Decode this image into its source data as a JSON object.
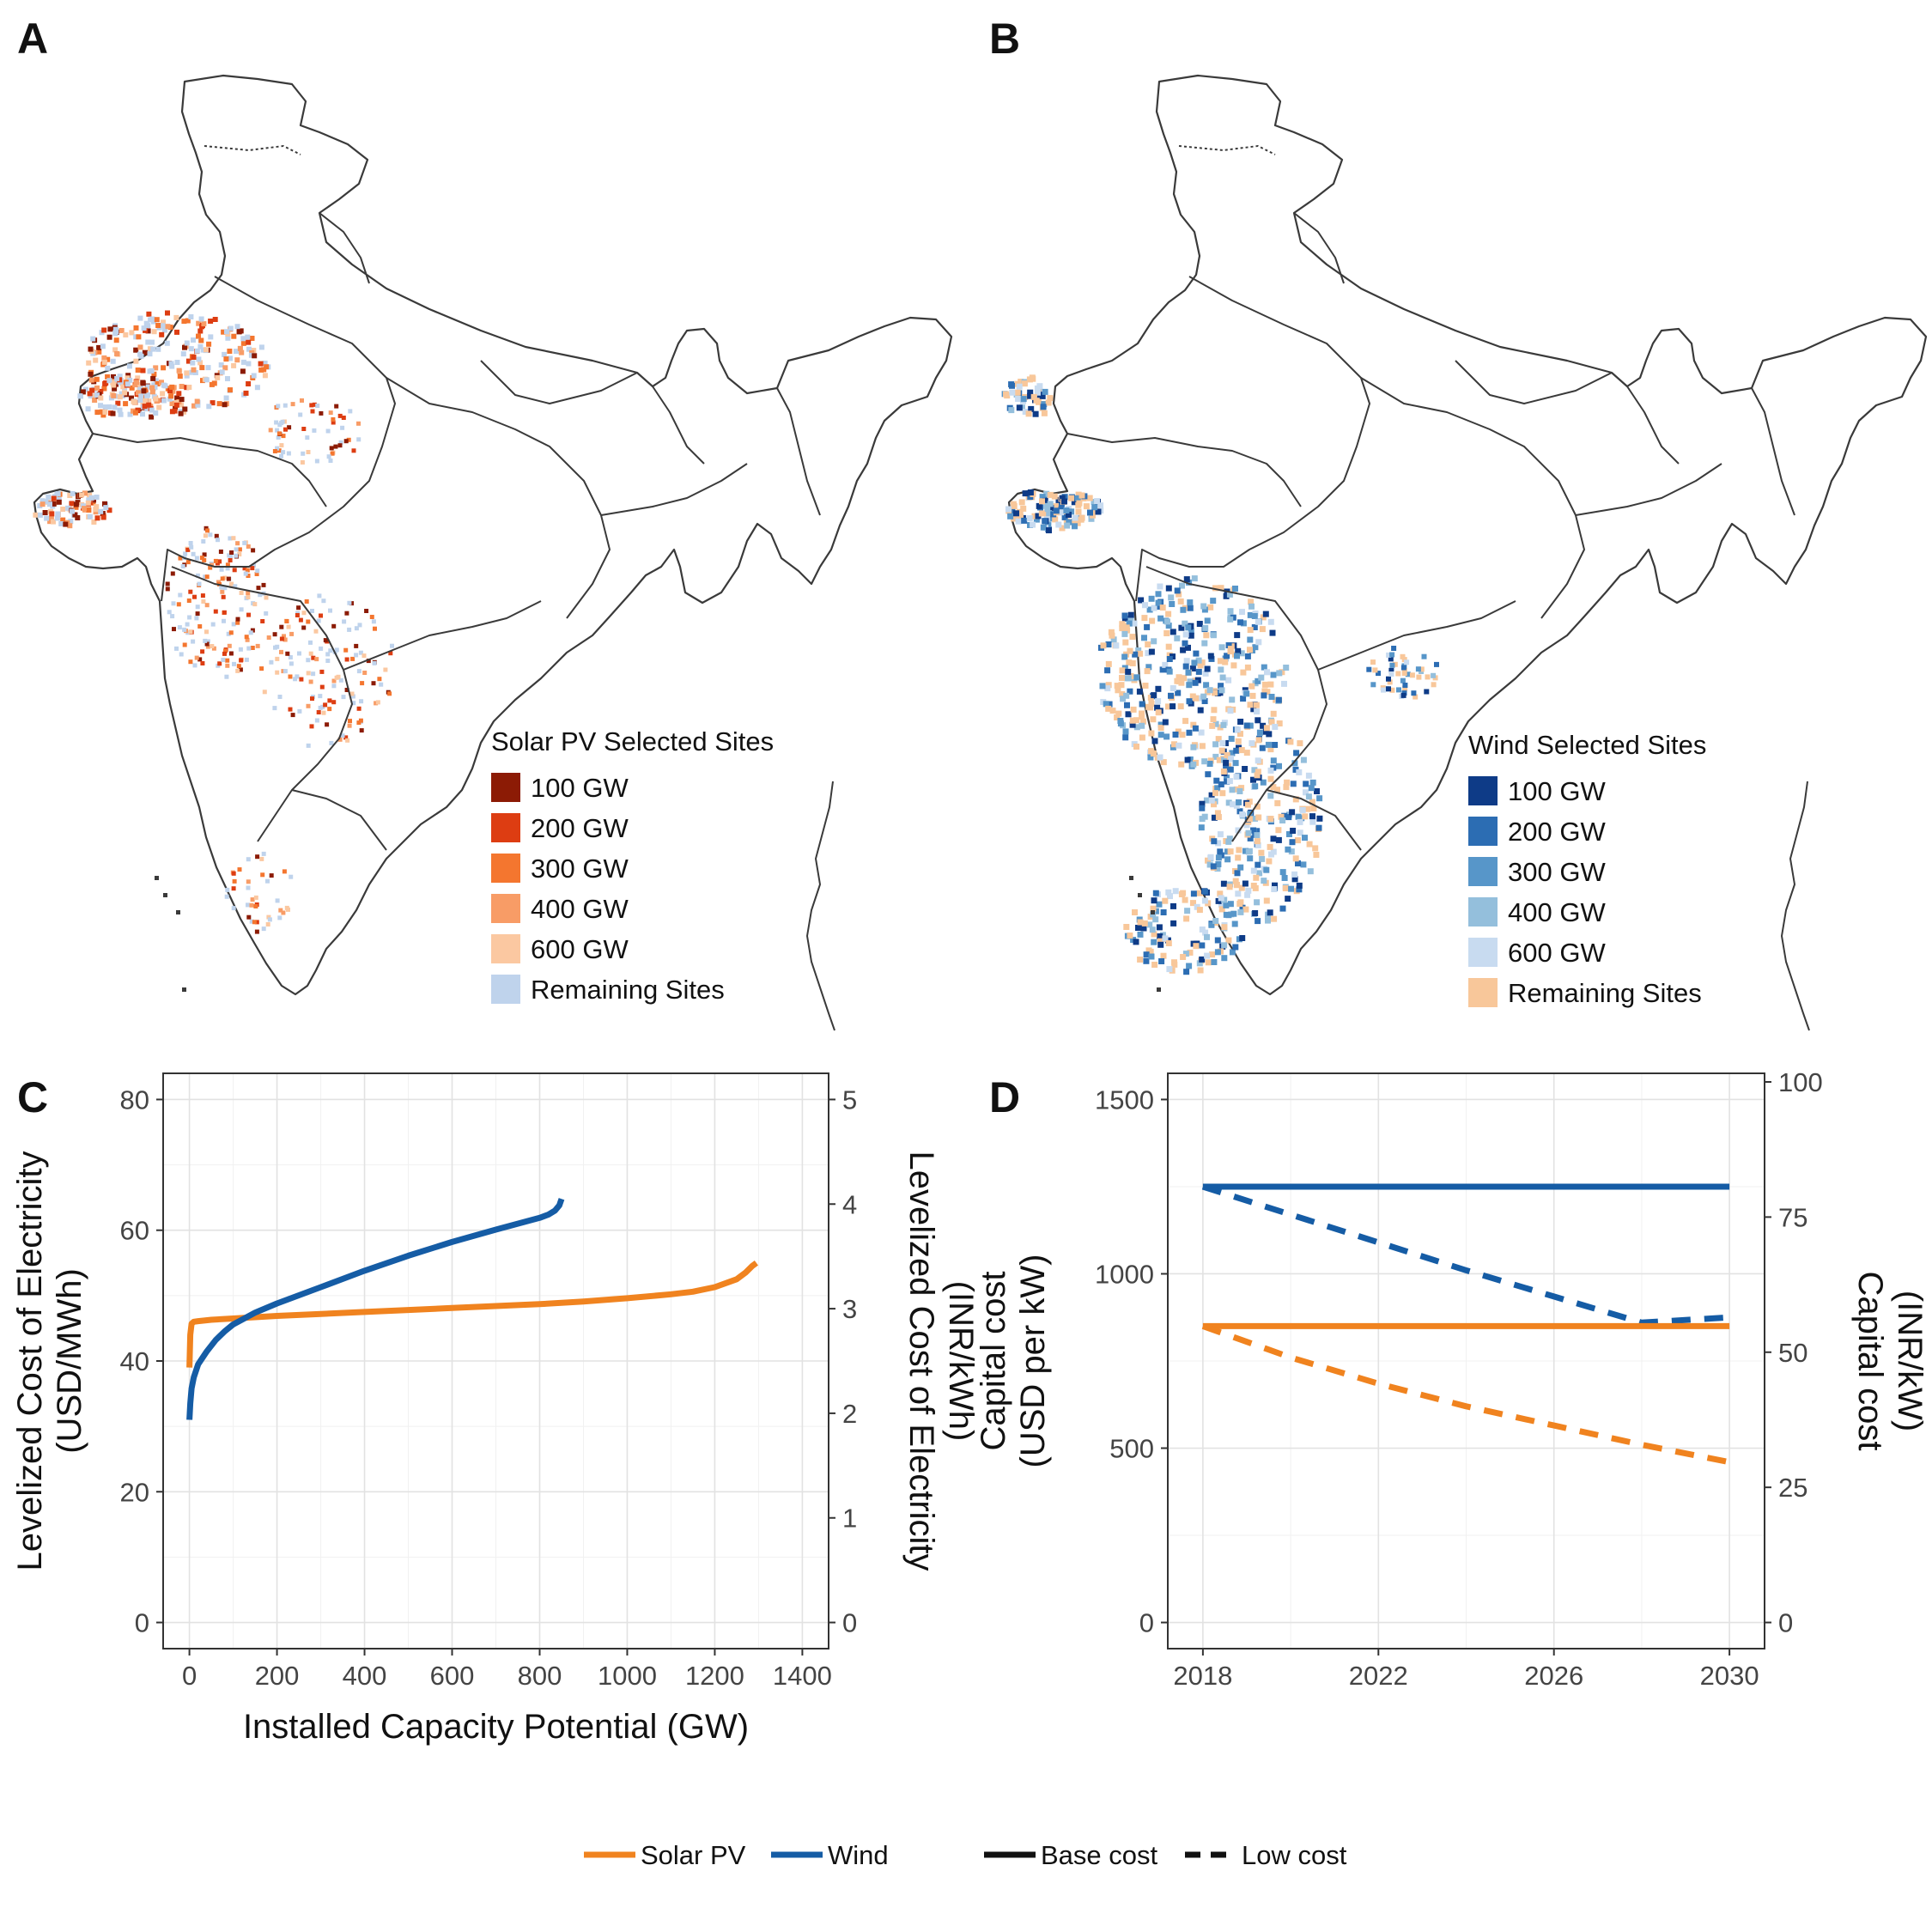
{
  "panels": {
    "A": {
      "letter": "A"
    },
    "B": {
      "letter": "B"
    },
    "C": {
      "letter": "C"
    },
    "D": {
      "letter": "D"
    }
  },
  "maps": {
    "solar": {
      "legend_title": "Solar PV Selected Sites",
      "legend": [
        {
          "label": "100 GW",
          "color": "#8c1b05"
        },
        {
          "label": "200 GW",
          "color": "#dd3d12"
        },
        {
          "label": "300 GW",
          "color": "#f4762f"
        },
        {
          "label": "400 GW",
          "color": "#f89c66"
        },
        {
          "label": "600 GW",
          "color": "#fbc8a1"
        },
        {
          "label": "Remaining Sites",
          "color": "#bfd3ec"
        }
      ]
    },
    "wind": {
      "legend_title": "Wind Selected Sites",
      "legend": [
        {
          "label": "100 GW",
          "color": "#0e3b87"
        },
        {
          "label": "200 GW",
          "color": "#2c6db3"
        },
        {
          "label": "300 GW",
          "color": "#5796c9"
        },
        {
          "label": "400 GW",
          "color": "#94bfdc"
        },
        {
          "label": "600 GW",
          "color": "#c8dbf0"
        },
        {
          "label": "Remaining Sites",
          "color": "#f8c79a"
        }
      ]
    }
  },
  "colors": {
    "solar": "#f0831f",
    "wind": "#155ca5"
  },
  "chart_data": [
    {
      "panel": "C",
      "type": "line",
      "xlabel": "Installed Capacity Potential (GW)",
      "ylabel": [
        "Levelized Cost of Electricity",
        "(USD/MWh)"
      ],
      "y2label": [
        "Levelized Cost of Electricity",
        "(INR/kWh)"
      ],
      "xlim": [
        -60,
        1460
      ],
      "ylim": [
        -4,
        84
      ],
      "y2_per_y": 0.0625,
      "x_ticks": [
        0,
        200,
        400,
        600,
        800,
        1000,
        1200,
        1400
      ],
      "y_ticks": [
        0,
        20,
        40,
        60,
        80
      ],
      "y2_ticks": [
        0,
        1,
        2,
        3,
        4,
        5
      ],
      "grid": true,
      "series": [
        {
          "name": "Solar PV",
          "color": "#f0831f",
          "x": [
            0,
            2,
            5,
            10,
            20,
            50,
            100,
            200,
            300,
            400,
            500,
            600,
            700,
            800,
            900,
            1000,
            1100,
            1150,
            1200,
            1250,
            1270,
            1285,
            1295
          ],
          "y": [
            39,
            44,
            45.7,
            46,
            46.1,
            46.3,
            46.5,
            46.9,
            47.2,
            47.5,
            47.8,
            48.1,
            48.4,
            48.7,
            49.1,
            49.6,
            50.2,
            50.6,
            51.3,
            52.5,
            53.5,
            54.5,
            55
          ]
        },
        {
          "name": "Wind",
          "color": "#155ca5",
          "x": [
            0,
            2,
            5,
            10,
            20,
            40,
            60,
            80,
            100,
            150,
            200,
            300,
            400,
            500,
            600,
            700,
            800,
            820,
            835,
            845,
            850
          ],
          "y": [
            31,
            33.5,
            35.8,
            37.5,
            39.5,
            41.5,
            43.2,
            44.5,
            45.6,
            47.4,
            48.8,
            51.3,
            53.8,
            56.1,
            58.2,
            60.1,
            61.9,
            62.4,
            63,
            63.8,
            64.8
          ]
        }
      ]
    },
    {
      "panel": "D",
      "type": "line",
      "xlabel": "",
      "ylabel": [
        "Capital cost",
        "(USD per kW)"
      ],
      "y2label": [
        "Capital cost",
        "(INR/kW)"
      ],
      "xlim": [
        2017.2,
        2030.8
      ],
      "ylim": [
        -75,
        1575
      ],
      "y2_per_y": 0.0645,
      "x_ticks": [
        2018,
        2022,
        2026,
        2030
      ],
      "y_ticks": [
        0,
        500,
        1000,
        1500
      ],
      "y2_ticks": [
        0,
        25,
        50,
        75,
        100
      ],
      "grid": true,
      "series": [
        {
          "name": "Wind",
          "cost": "Base cost",
          "color": "#155ca5",
          "dash": false,
          "x": [
            2018,
            2030
          ],
          "y": [
            1250,
            1250
          ]
        },
        {
          "name": "Wind",
          "cost": "Low cost",
          "color": "#155ca5",
          "dash": true,
          "x": [
            2018,
            2020,
            2022,
            2024,
            2026,
            2028,
            2030
          ],
          "y": [
            1250,
            1170,
            1090,
            1010,
            935,
            860,
            875
          ]
        },
        {
          "name": "Solar PV",
          "cost": "Base cost",
          "color": "#f0831f",
          "dash": false,
          "x": [
            2018,
            2030
          ],
          "y": [
            850,
            850
          ]
        },
        {
          "name": "Solar PV",
          "cost": "Low cost",
          "color": "#f0831f",
          "dash": true,
          "x": [
            2018,
            2020,
            2022,
            2024,
            2026,
            2028,
            2030
          ],
          "y": [
            850,
            760,
            685,
            620,
            565,
            510,
            460
          ]
        }
      ]
    }
  ],
  "legend": {
    "items": [
      {
        "label": "Solar PV",
        "color": "#f0831f",
        "dash": false
      },
      {
        "label": "Wind",
        "color": "#155ca5",
        "dash": false
      },
      {
        "label": "Base cost",
        "color": "#111111",
        "dash": false
      },
      {
        "label": "Low cost",
        "color": "#111111",
        "dash": true
      }
    ]
  }
}
